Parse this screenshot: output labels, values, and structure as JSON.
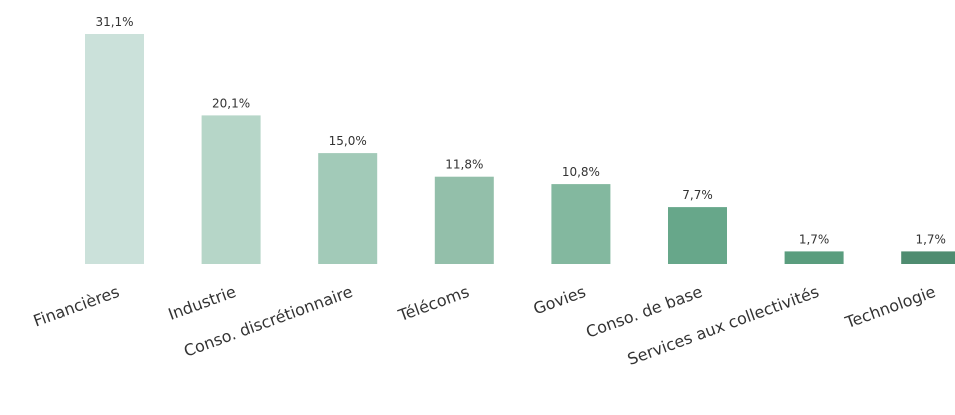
{
  "chart_data": {
    "type": "bar",
    "title": "",
    "xlabel": "",
    "ylabel": "",
    "ylim": [
      0,
      31.1
    ],
    "grid": false,
    "categories": [
      "Financières",
      "Industrie",
      "Conso. discrétionnaire",
      "Télécoms",
      "Govies",
      "Conso. de base",
      "Services aux collectivités",
      "Technologie"
    ],
    "values": [
      31.1,
      20.1,
      15.0,
      11.8,
      10.8,
      7.7,
      1.7,
      1.7
    ],
    "value_labels": [
      "31,1%",
      "20,1%",
      "15,0%",
      "11,8%",
      "10,8%",
      "7,7%",
      "1,7%",
      "1,7%"
    ],
    "colors": [
      "#cbe1da",
      "#b6d6c8",
      "#a2cab8",
      "#93bfaa",
      "#83b89f",
      "#67a78a",
      "#5a9d7e",
      "#4f8c70"
    ]
  }
}
